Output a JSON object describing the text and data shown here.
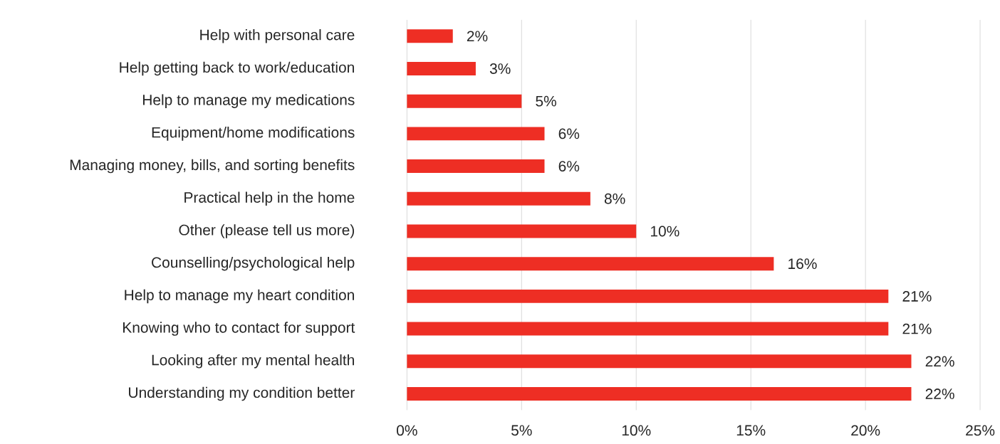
{
  "chart_data": {
    "type": "bar",
    "orientation": "horizontal",
    "categories": [
      "Help with personal care",
      "Help getting back to work/education",
      "Help to manage my medications",
      "Equipment/home modifications",
      "Managing money, bills, and sorting benefits",
      "Practical help in the home",
      "Other (please tell us more)",
      "Counselling/psychological help",
      "Help to manage my heart condition",
      "Knowing who to contact for support",
      "Looking after my mental health",
      "Understanding my condition better"
    ],
    "values": [
      2,
      3,
      5,
      6,
      6,
      8,
      10,
      16,
      21,
      21,
      22,
      22
    ],
    "value_labels": [
      "2%",
      "3%",
      "5%",
      "6%",
      "6%",
      "8%",
      "10%",
      "16%",
      "21%",
      "21%",
      "22%",
      "22%"
    ],
    "color": "#ee2e24",
    "xlim": [
      0,
      25
    ],
    "xticks": [
      {
        "value": 0,
        "label": "0%"
      },
      {
        "value": 5,
        "label": "5%"
      },
      {
        "value": 10,
        "label": "10%"
      },
      {
        "value": 15,
        "label": "15%"
      },
      {
        "value": 20,
        "label": "20%"
      },
      {
        "value": 25,
        "label": "25%"
      }
    ],
    "grid": "x"
  }
}
